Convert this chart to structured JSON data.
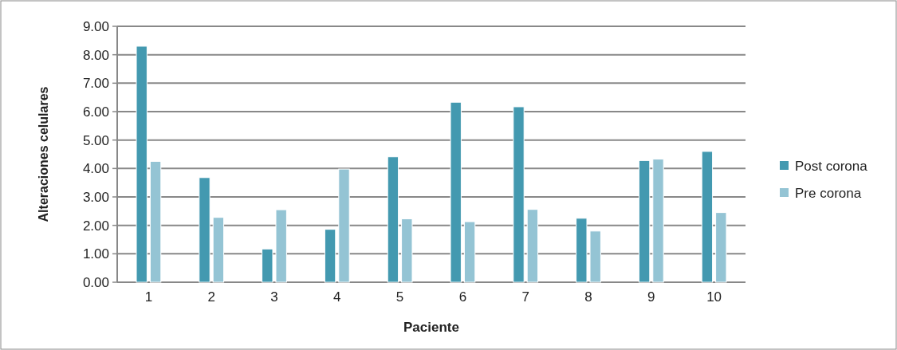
{
  "chart_data": {
    "type": "bar",
    "xlabel": "Paciente",
    "ylabel": "Alteraciones celulares",
    "categories": [
      "1",
      "2",
      "3",
      "4",
      "5",
      "6",
      "7",
      "8",
      "9",
      "10"
    ],
    "series": [
      {
        "name": "Post corona",
        "color": "#4399b0",
        "values": [
          8.3,
          3.68,
          1.17,
          1.86,
          4.41,
          6.33,
          6.17,
          2.25,
          4.28,
          4.6
        ]
      },
      {
        "name": "Pre corona",
        "color": "#94c4d4",
        "values": [
          4.25,
          2.28,
          2.55,
          3.98,
          2.23,
          2.13,
          2.56,
          1.8,
          4.33,
          2.45
        ]
      }
    ],
    "ylim": [
      0,
      9
    ],
    "yticks": [
      {
        "value": 0,
        "label": "0.00"
      },
      {
        "value": 1,
        "label": "1.00"
      },
      {
        "value": 2,
        "label": "2.00"
      },
      {
        "value": 3,
        "label": "3.00"
      },
      {
        "value": 4,
        "label": "4.00"
      },
      {
        "value": 5,
        "label": "5.00"
      },
      {
        "value": 6,
        "label": "6.00"
      },
      {
        "value": 7,
        "label": "7.00"
      },
      {
        "value": 8,
        "label": "8.00"
      },
      {
        "value": 9,
        "label": "9.00"
      }
    ],
    "grid": "y",
    "legend": "right"
  }
}
